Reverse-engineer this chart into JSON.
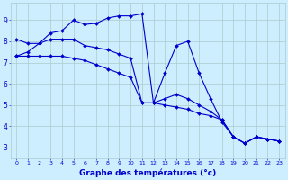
{
  "hours": [
    0,
    1,
    2,
    3,
    4,
    5,
    6,
    7,
    8,
    9,
    10,
    11,
    12,
    13,
    14,
    15,
    16,
    17,
    18,
    19,
    20,
    21,
    22,
    23
  ],
  "t1": [
    7.3,
    7.5,
    7.9,
    8.4,
    8.5,
    9.0,
    8.8,
    8.85,
    9.1,
    9.2,
    9.2,
    9.3,
    5.1,
    6.5,
    7.8,
    8.0,
    6.5,
    5.3,
    4.2,
    3.5,
    3.2,
    3.5,
    3.4,
    3.3
  ],
  "t2": [
    8.1,
    7.9,
    7.9,
    8.1,
    8.1,
    8.1,
    7.8,
    7.7,
    7.6,
    7.4,
    7.2,
    5.1,
    5.1,
    5.3,
    5.5,
    5.3,
    5.0,
    4.7,
    4.3,
    3.5,
    3.2,
    3.5,
    3.4,
    3.3
  ],
  "t3": [
    7.3,
    7.3,
    7.3,
    7.3,
    7.3,
    7.2,
    7.1,
    6.9,
    6.7,
    6.5,
    6.3,
    5.1,
    5.1,
    5.0,
    4.9,
    4.8,
    4.6,
    4.5,
    4.3,
    3.5,
    3.2,
    3.5,
    3.4,
    3.3
  ],
  "bg_color": "#cceeff",
  "grid_color": "#aacccc",
  "line_color": "#0000cc",
  "marker": "D",
  "marker_size": 2.0,
  "xlabel": "Graphe des températures (°c)",
  "xlabel_fontsize": 6.5,
  "ylabel_ticks": [
    3,
    4,
    5,
    6,
    7,
    8,
    9
  ],
  "ylim": [
    2.5,
    9.8
  ],
  "xlim": [
    -0.5,
    23.5
  ]
}
